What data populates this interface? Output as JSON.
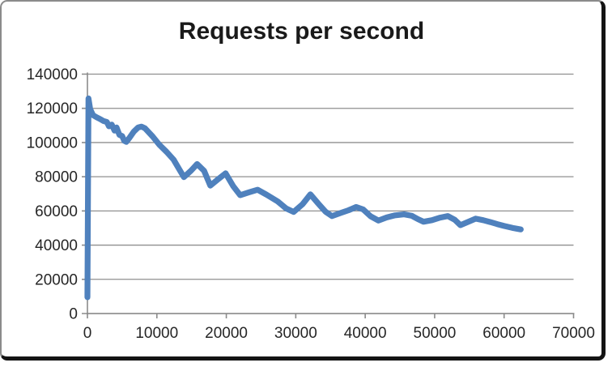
{
  "chart_data": {
    "type": "line",
    "title": "Requests per second",
    "xlabel": "",
    "ylabel": "",
    "xlim": [
      0,
      70000
    ],
    "ylim": [
      0,
      140000
    ],
    "x_ticks": [
      0,
      10000,
      20000,
      30000,
      40000,
      50000,
      60000,
      70000
    ],
    "x_tick_labels": [
      "0",
      "10000",
      "20000",
      "30000",
      "40000",
      "50000",
      "60000",
      "70000"
    ],
    "y_ticks": [
      0,
      20000,
      40000,
      60000,
      80000,
      100000,
      120000,
      140000
    ],
    "y_tick_labels": [
      "0",
      "20000",
      "40000",
      "60000",
      "80000",
      "100000",
      "120000",
      "140000"
    ],
    "grid": "horizontal",
    "legend": "none",
    "colors": {
      "line": "#4f81bd",
      "grid": "#8f8f8f",
      "axis": "#8a8a8a",
      "tick_text": "#262626",
      "title_text": "#1a1a1a",
      "background": "#ffffff",
      "frame_border": "#141414"
    },
    "series": [
      {
        "name": "Requests per second",
        "points": [
          [
            0,
            9500
          ],
          [
            150,
            125800
          ],
          [
            400,
            119500
          ],
          [
            800,
            116000
          ],
          [
            1300,
            114800
          ],
          [
            1800,
            113800
          ],
          [
            2300,
            112600
          ],
          [
            2800,
            112000
          ],
          [
            3100,
            109500
          ],
          [
            3500,
            110500
          ],
          [
            3900,
            107000
          ],
          [
            4200,
            108800
          ],
          [
            4600,
            104500
          ],
          [
            5000,
            103800
          ],
          [
            5300,
            101000
          ],
          [
            5600,
            100400
          ],
          [
            6100,
            103000
          ],
          [
            6700,
            106500
          ],
          [
            7300,
            108800
          ],
          [
            7800,
            109300
          ],
          [
            8300,
            108300
          ],
          [
            9400,
            103500
          ],
          [
            10400,
            98500
          ],
          [
            11400,
            94500
          ],
          [
            12400,
            90000
          ],
          [
            13200,
            84500
          ],
          [
            13900,
            79800
          ],
          [
            14900,
            83500
          ],
          [
            15800,
            87400
          ],
          [
            16800,
            83500
          ],
          [
            17700,
            74800
          ],
          [
            18800,
            78500
          ],
          [
            19900,
            82000
          ],
          [
            21000,
            74500
          ],
          [
            22000,
            69200
          ],
          [
            23200,
            70800
          ],
          [
            24500,
            72400
          ],
          [
            25800,
            69500
          ],
          [
            27400,
            65500
          ],
          [
            28600,
            61500
          ],
          [
            29700,
            59400
          ],
          [
            31000,
            64000
          ],
          [
            32100,
            69700
          ],
          [
            33200,
            64500
          ],
          [
            34300,
            59500
          ],
          [
            35200,
            57000
          ],
          [
            36500,
            58900
          ],
          [
            37600,
            60400
          ],
          [
            38700,
            62300
          ],
          [
            39700,
            60900
          ],
          [
            40800,
            56800
          ],
          [
            41900,
            54400
          ],
          [
            43100,
            56200
          ],
          [
            44300,
            57400
          ],
          [
            45600,
            58000
          ],
          [
            46700,
            57200
          ],
          [
            47600,
            55200
          ],
          [
            48400,
            53700
          ],
          [
            49600,
            54600
          ],
          [
            50800,
            56100
          ],
          [
            51900,
            57000
          ],
          [
            52900,
            54800
          ],
          [
            53700,
            51700
          ],
          [
            54800,
            53600
          ],
          [
            55900,
            55500
          ],
          [
            57000,
            54600
          ],
          [
            58000,
            53500
          ],
          [
            59000,
            52300
          ],
          [
            60000,
            51200
          ],
          [
            61200,
            50100
          ],
          [
            62400,
            49200
          ]
        ]
      }
    ]
  }
}
